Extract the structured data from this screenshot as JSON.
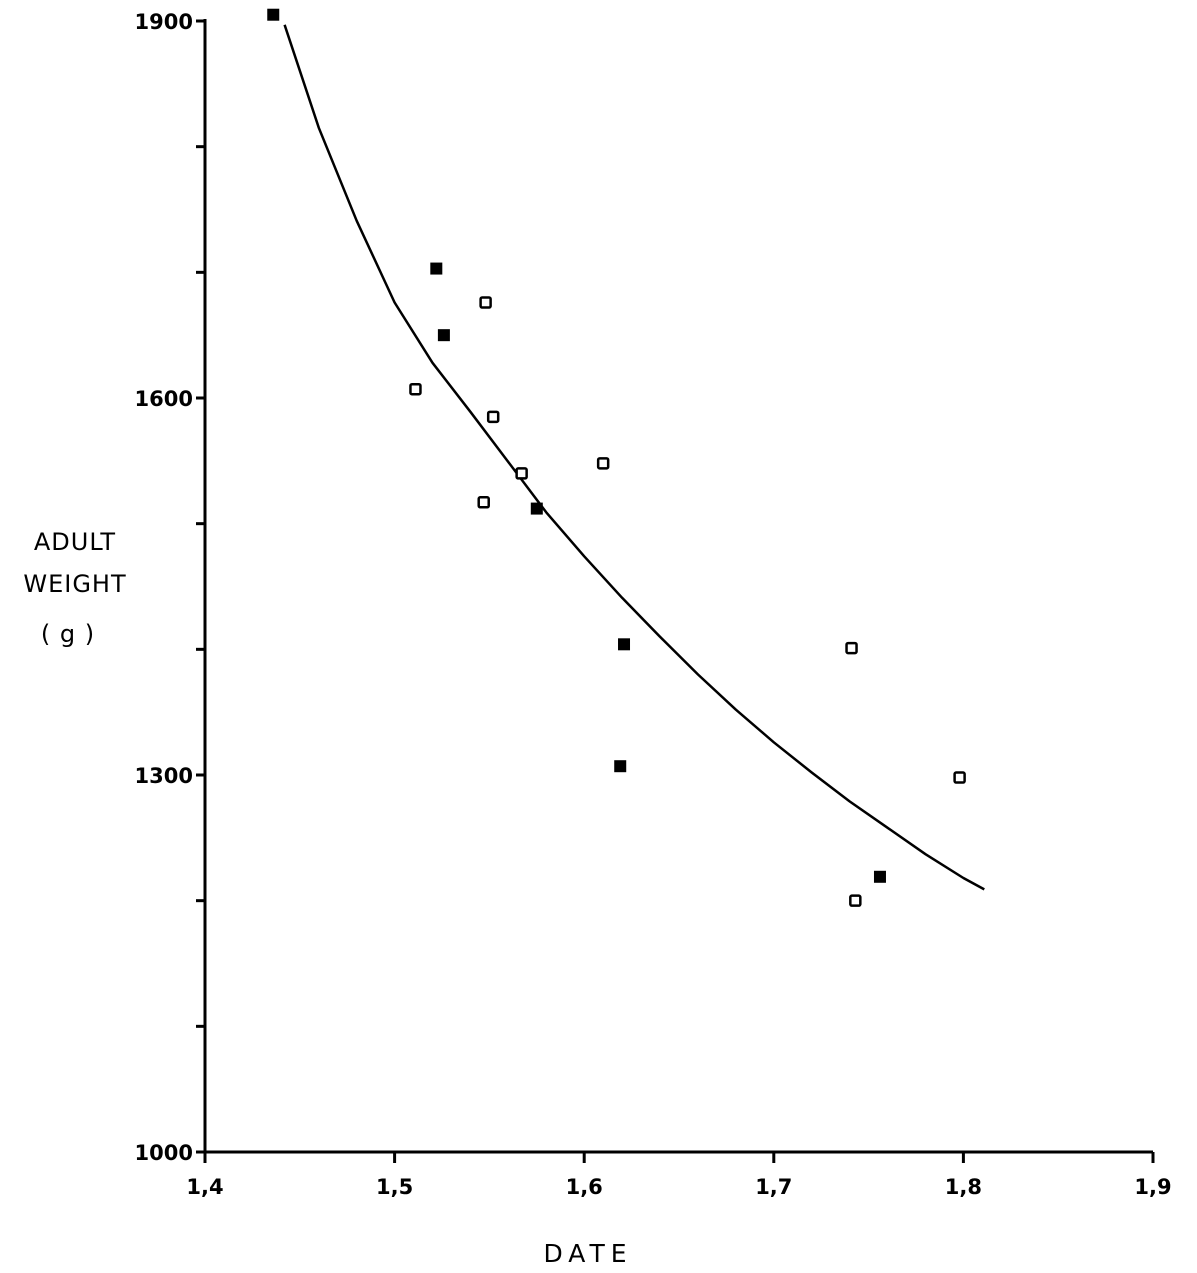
{
  "chart_data": {
    "type": "scatter",
    "xlabel": "DATE",
    "ylabel": [
      "ADULT",
      "WEIGHT",
      "( g )"
    ],
    "xlim": [
      1.4,
      1.9
    ],
    "ylim": [
      1000,
      1900
    ],
    "x_ticks": [
      1.4,
      1.5,
      1.6,
      1.7,
      1.8,
      1.9
    ],
    "x_tick_labels": [
      "1,4",
      "1,5",
      "1,6",
      "1,7",
      "1,8",
      "1,9"
    ],
    "y_ticks": [
      1000,
      1100,
      1200,
      1300,
      1400,
      1500,
      1600,
      1700,
      1800,
      1900
    ],
    "y_labeled_ticks": [
      1000,
      1300,
      1600,
      1900
    ],
    "y_tick_labels": [
      "1000",
      "1300",
      "1600",
      "1900"
    ],
    "grid": false,
    "series": [
      {
        "marker": "filled-square",
        "color": "#000000",
        "points": [
          {
            "x": 1.436,
            "y": 1905
          },
          {
            "x": 1.522,
            "y": 1703
          },
          {
            "x": 1.526,
            "y": 1650
          },
          {
            "x": 1.575,
            "y": 1512
          },
          {
            "x": 1.621,
            "y": 1404
          },
          {
            "x": 1.619,
            "y": 1307
          },
          {
            "x": 1.756,
            "y": 1219
          }
        ]
      },
      {
        "marker": "open-square",
        "color": "#000000",
        "points": [
          {
            "x": 1.511,
            "y": 1607
          },
          {
            "x": 1.548,
            "y": 1676
          },
          {
            "x": 1.552,
            "y": 1585
          },
          {
            "x": 1.547,
            "y": 1517
          },
          {
            "x": 1.567,
            "y": 1540
          },
          {
            "x": 1.61,
            "y": 1548
          },
          {
            "x": 1.741,
            "y": 1401
          },
          {
            "x": 1.743,
            "y": 1200
          },
          {
            "x": 1.798,
            "y": 1298
          }
        ]
      }
    ],
    "curve": {
      "type": "line",
      "color": "#000000",
      "points": [
        {
          "x": 1.442,
          "y": 1897
        },
        {
          "x": 1.46,
          "y": 1815
        },
        {
          "x": 1.48,
          "y": 1741
        },
        {
          "x": 1.5,
          "y": 1676
        },
        {
          "x": 1.52,
          "y": 1628
        },
        {
          "x": 1.54,
          "y": 1589
        },
        {
          "x": 1.56,
          "y": 1549
        },
        {
          "x": 1.58,
          "y": 1509
        },
        {
          "x": 1.6,
          "y": 1474
        },
        {
          "x": 1.62,
          "y": 1441
        },
        {
          "x": 1.64,
          "y": 1410
        },
        {
          "x": 1.66,
          "y": 1380
        },
        {
          "x": 1.68,
          "y": 1352
        },
        {
          "x": 1.7,
          "y": 1326
        },
        {
          "x": 1.72,
          "y": 1302
        },
        {
          "x": 1.74,
          "y": 1279
        },
        {
          "x": 1.76,
          "y": 1258
        },
        {
          "x": 1.78,
          "y": 1237
        },
        {
          "x": 1.8,
          "y": 1218
        },
        {
          "x": 1.811,
          "y": 1209
        }
      ]
    }
  }
}
